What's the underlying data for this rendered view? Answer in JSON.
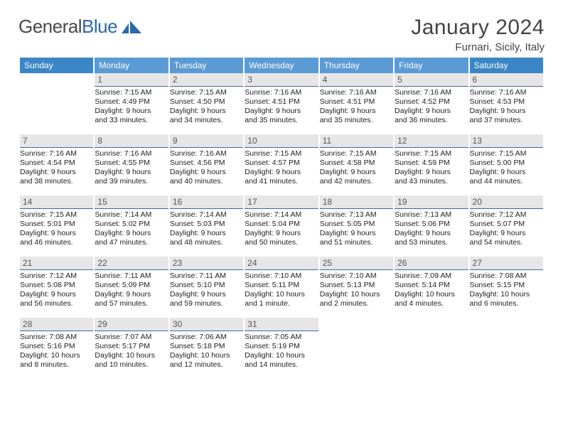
{
  "logo": {
    "word1": "General",
    "word2": "Blue"
  },
  "title": "January 2024",
  "location": "Furnari, Sicily, Italy",
  "header_colors": {
    "weekend": "#3b86c6",
    "weekday": "#5b9bd5",
    "text": "#ffffff"
  },
  "daynum_style": {
    "bg": "#e6e6e6",
    "border": "#3b6ca0",
    "color": "#555555",
    "fontsize": 12
  },
  "cell_style": {
    "fontsize": 10.5,
    "color": "#222222"
  },
  "day_headers": [
    "Sunday",
    "Monday",
    "Tuesday",
    "Wednesday",
    "Thursday",
    "Friday",
    "Saturday"
  ],
  "weeks": [
    [
      null,
      {
        "n": "1",
        "sr": "7:15 AM",
        "ss": "4:49 PM",
        "dl": "9 hours and 33 minutes."
      },
      {
        "n": "2",
        "sr": "7:15 AM",
        "ss": "4:50 PM",
        "dl": "9 hours and 34 minutes."
      },
      {
        "n": "3",
        "sr": "7:16 AM",
        "ss": "4:51 PM",
        "dl": "9 hours and 35 minutes."
      },
      {
        "n": "4",
        "sr": "7:16 AM",
        "ss": "4:51 PM",
        "dl": "9 hours and 35 minutes."
      },
      {
        "n": "5",
        "sr": "7:16 AM",
        "ss": "4:52 PM",
        "dl": "9 hours and 36 minutes."
      },
      {
        "n": "6",
        "sr": "7:16 AM",
        "ss": "4:53 PM",
        "dl": "9 hours and 37 minutes."
      }
    ],
    [
      {
        "n": "7",
        "sr": "7:16 AM",
        "ss": "4:54 PM",
        "dl": "9 hours and 38 minutes."
      },
      {
        "n": "8",
        "sr": "7:16 AM",
        "ss": "4:55 PM",
        "dl": "9 hours and 39 minutes."
      },
      {
        "n": "9",
        "sr": "7:16 AM",
        "ss": "4:56 PM",
        "dl": "9 hours and 40 minutes."
      },
      {
        "n": "10",
        "sr": "7:15 AM",
        "ss": "4:57 PM",
        "dl": "9 hours and 41 minutes."
      },
      {
        "n": "11",
        "sr": "7:15 AM",
        "ss": "4:58 PM",
        "dl": "9 hours and 42 minutes."
      },
      {
        "n": "12",
        "sr": "7:15 AM",
        "ss": "4:59 PM",
        "dl": "9 hours and 43 minutes."
      },
      {
        "n": "13",
        "sr": "7:15 AM",
        "ss": "5:00 PM",
        "dl": "9 hours and 44 minutes."
      }
    ],
    [
      {
        "n": "14",
        "sr": "7:15 AM",
        "ss": "5:01 PM",
        "dl": "9 hours and 46 minutes."
      },
      {
        "n": "15",
        "sr": "7:14 AM",
        "ss": "5:02 PM",
        "dl": "9 hours and 47 minutes."
      },
      {
        "n": "16",
        "sr": "7:14 AM",
        "ss": "5:03 PM",
        "dl": "9 hours and 48 minutes."
      },
      {
        "n": "17",
        "sr": "7:14 AM",
        "ss": "5:04 PM",
        "dl": "9 hours and 50 minutes."
      },
      {
        "n": "18",
        "sr": "7:13 AM",
        "ss": "5:05 PM",
        "dl": "9 hours and 51 minutes."
      },
      {
        "n": "19",
        "sr": "7:13 AM",
        "ss": "5:06 PM",
        "dl": "9 hours and 53 minutes."
      },
      {
        "n": "20",
        "sr": "7:12 AM",
        "ss": "5:07 PM",
        "dl": "9 hours and 54 minutes."
      }
    ],
    [
      {
        "n": "21",
        "sr": "7:12 AM",
        "ss": "5:08 PM",
        "dl": "9 hours and 56 minutes."
      },
      {
        "n": "22",
        "sr": "7:11 AM",
        "ss": "5:09 PM",
        "dl": "9 hours and 57 minutes."
      },
      {
        "n": "23",
        "sr": "7:11 AM",
        "ss": "5:10 PM",
        "dl": "9 hours and 59 minutes."
      },
      {
        "n": "24",
        "sr": "7:10 AM",
        "ss": "5:11 PM",
        "dl": "10 hours and 1 minute."
      },
      {
        "n": "25",
        "sr": "7:10 AM",
        "ss": "5:13 PM",
        "dl": "10 hours and 2 minutes."
      },
      {
        "n": "26",
        "sr": "7:09 AM",
        "ss": "5:14 PM",
        "dl": "10 hours and 4 minutes."
      },
      {
        "n": "27",
        "sr": "7:08 AM",
        "ss": "5:15 PM",
        "dl": "10 hours and 6 minutes."
      }
    ],
    [
      {
        "n": "28",
        "sr": "7:08 AM",
        "ss": "5:16 PM",
        "dl": "10 hours and 8 minutes."
      },
      {
        "n": "29",
        "sr": "7:07 AM",
        "ss": "5:17 PM",
        "dl": "10 hours and 10 minutes."
      },
      {
        "n": "30",
        "sr": "7:06 AM",
        "ss": "5:18 PM",
        "dl": "10 hours and 12 minutes."
      },
      {
        "n": "31",
        "sr": "7:05 AM",
        "ss": "5:19 PM",
        "dl": "10 hours and 14 minutes."
      },
      null,
      null,
      null
    ]
  ],
  "labels": {
    "sunrise": "Sunrise:",
    "sunset": "Sunset:",
    "daylight": "Daylight:"
  }
}
